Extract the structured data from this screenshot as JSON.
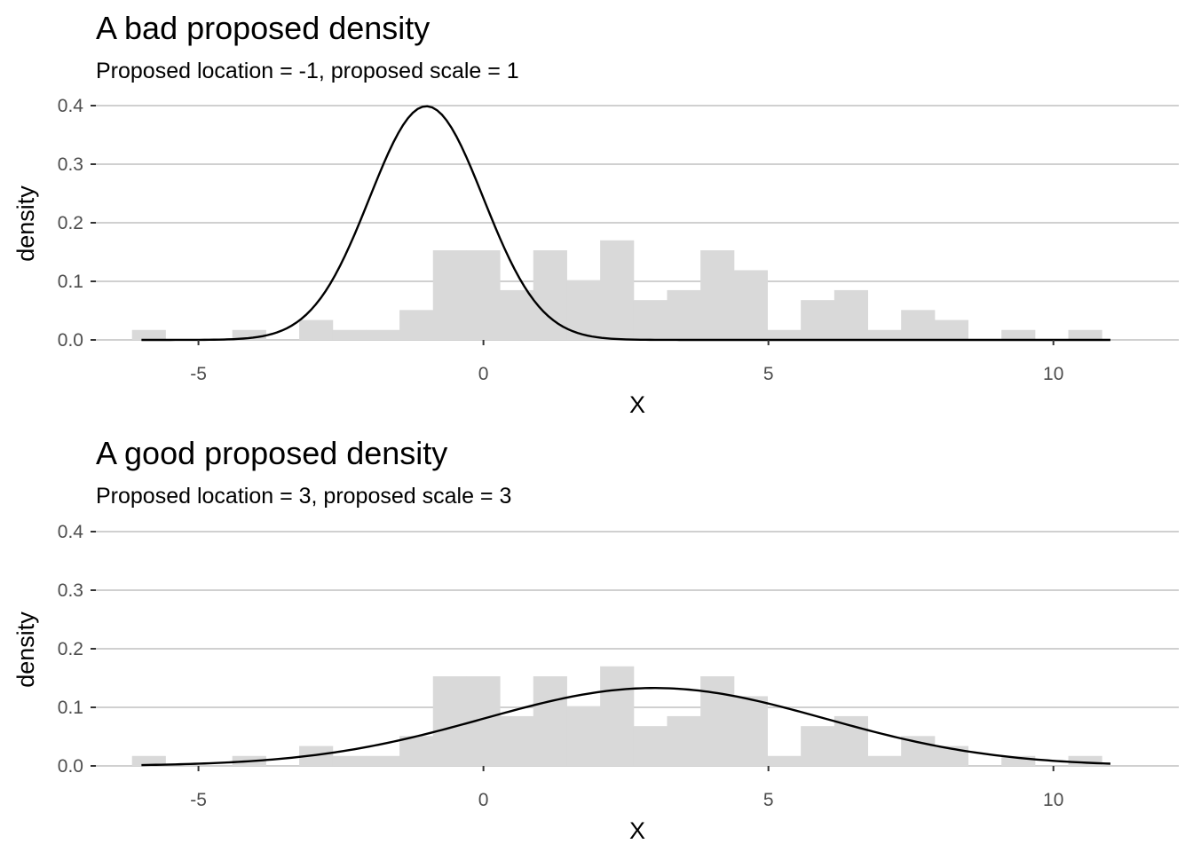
{
  "chart_data": [
    {
      "type": "bar",
      "title": "A bad proposed density",
      "subtitle": "Proposed location = -1, proposed scale = 1",
      "xlabel": "X",
      "ylabel": "density",
      "xlim": [
        -6.8,
        12.2
      ],
      "ylim": [
        0,
        0.4
      ],
      "xticks": [
        -5,
        0,
        5,
        10
      ],
      "xtick_labels": [
        "-5",
        "0",
        "5",
        "10"
      ],
      "yticks": [
        0.0,
        0.1,
        0.2,
        0.3,
        0.4
      ],
      "ytick_labels": [
        "0.0",
        "0.1",
        "0.2",
        "0.3",
        "0.4"
      ],
      "grid": "horizontal",
      "histogram": {
        "bin_width": 0.5867,
        "bin_start": -6.166,
        "values": [
          0.017,
          0.0,
          0.0,
          0.017,
          0.0,
          0.034,
          0.017,
          0.017,
          0.051,
          0.153,
          0.153,
          0.085,
          0.153,
          0.102,
          0.17,
          0.068,
          0.085,
          0.153,
          0.119,
          0.017,
          0.068,
          0.085,
          0.017,
          0.051,
          0.034,
          0.0,
          0.017,
          0.0,
          0.017
        ]
      },
      "density_curve": {
        "distribution": "normal",
        "location": -1,
        "scale": 1,
        "x_range": [
          -6,
          11
        ]
      }
    },
    {
      "type": "bar",
      "title": "A good proposed density",
      "subtitle": "Proposed location = 3, proposed scale = 3",
      "xlabel": "X",
      "ylabel": "density",
      "xlim": [
        -6.8,
        12.2
      ],
      "ylim": [
        0,
        0.4
      ],
      "xticks": [
        -5,
        0,
        5,
        10
      ],
      "xtick_labels": [
        "-5",
        "0",
        "5",
        "10"
      ],
      "yticks": [
        0.0,
        0.1,
        0.2,
        0.3,
        0.4
      ],
      "ytick_labels": [
        "0.0",
        "0.1",
        "0.2",
        "0.3",
        "0.4"
      ],
      "grid": "horizontal",
      "histogram": {
        "bin_width": 0.5867,
        "bin_start": -6.166,
        "values": [
          0.017,
          0.0,
          0.0,
          0.017,
          0.0,
          0.034,
          0.017,
          0.017,
          0.051,
          0.153,
          0.153,
          0.085,
          0.153,
          0.102,
          0.17,
          0.068,
          0.085,
          0.153,
          0.119,
          0.017,
          0.068,
          0.085,
          0.017,
          0.051,
          0.034,
          0.0,
          0.017,
          0.0,
          0.017
        ]
      },
      "density_curve": {
        "distribution": "normal",
        "location": 3,
        "scale": 3,
        "x_range": [
          -6,
          11
        ]
      }
    }
  ],
  "colors": {
    "bars": "#d9d9d9",
    "curve": "#000000",
    "grid": "#d0d0d0",
    "tick_text": "#4d4d4d"
  }
}
